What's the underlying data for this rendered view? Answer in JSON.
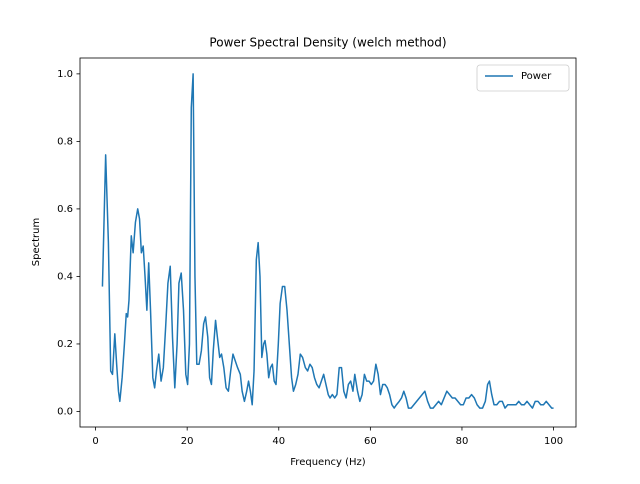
{
  "chart_data": {
    "type": "line",
    "title": "Power Spectral Density (welch method)",
    "x_label": "Frequency (Hz)",
    "y_label": "Spectrum",
    "xlim": [
      -3.4,
      104.9
    ],
    "ylim": [
      -0.046,
      1.047
    ],
    "xticks": [
      0,
      20,
      40,
      60,
      80,
      100
    ],
    "yticks": [
      {
        "value": 0,
        "label": "0.0"
      },
      0.2,
      0.4,
      0.6,
      0.8,
      {
        "value": 1,
        "label": "1.0"
      }
    ],
    "legend": "upper right",
    "x": [
      1.5,
      2.2,
      2.8,
      3.3,
      3.7,
      4.2,
      4.6,
      5.0,
      5.3,
      5.8,
      6.3,
      6.7,
      7.0,
      7.3,
      7.8,
      8.2,
      8.7,
      9.2,
      9.6,
      10.0,
      10.4,
      10.8,
      11.2,
      11.6,
      12.0,
      12.5,
      12.9,
      13.3,
      13.8,
      14.3,
      14.8,
      15.3,
      15.8,
      16.3,
      16.8,
      17.3,
      17.8,
      18.2,
      18.7,
      19.2,
      19.7,
      20.1,
      20.5,
      20.9,
      21.3,
      21.7,
      22.1,
      22.6,
      23.1,
      23.6,
      24.0,
      24.5,
      24.9,
      25.3,
      25.7,
      26.2,
      26.6,
      27.1,
      27.5,
      28.0,
      28.5,
      29.0,
      29.5,
      30.0,
      30.5,
      31.0,
      31.6,
      32.0,
      32.5,
      33.0,
      33.4,
      33.8,
      34.2,
      34.6,
      35.1,
      35.5,
      35.9,
      36.3,
      36.7,
      37.0,
      37.4,
      37.8,
      38.2,
      38.6,
      39.0,
      39.4,
      39.9,
      40.3,
      40.8,
      41.3,
      41.8,
      42.3,
      42.8,
      43.2,
      43.7,
      44.2,
      44.7,
      45.2,
      45.8,
      46.3,
      46.8,
      47.3,
      47.8,
      48.3,
      48.8,
      49.3,
      49.8,
      50.3,
      50.8,
      51.2,
      51.7,
      52.2,
      52.7,
      53.2,
      53.7,
      54.2,
      54.7,
      55.2,
      55.7,
      56.2,
      56.6,
      57.2,
      57.7,
      58.2,
      58.7,
      59.2,
      59.7,
      60.2,
      60.7,
      61.2,
      61.7,
      62.2,
      62.7,
      63.2,
      63.7,
      64.2,
      64.7,
      65.2,
      65.7,
      66.3,
      66.8,
      67.3,
      67.8,
      68.3,
      68.9,
      69.5,
      70.1,
      70.7,
      71.3,
      71.9,
      72.5,
      73.1,
      73.7,
      74.3,
      74.9,
      75.5,
      76.1,
      76.7,
      77.3,
      77.9,
      78.5,
      79.1,
      79.7,
      80.3,
      80.9,
      81.5,
      82.1,
      82.7,
      83.3,
      83.9,
      84.5,
      85.1,
      85.6,
      86.0,
      86.5,
      87.0,
      87.6,
      88.2,
      88.8,
      89.4,
      90.0,
      90.6,
      91.2,
      91.8,
      92.4,
      93.0,
      93.6,
      94.2,
      94.8,
      95.4,
      96.0,
      96.6,
      97.2,
      97.8,
      98.4,
      99.0,
      99.6,
      100.0
    ],
    "series": [
      {
        "name": "Power",
        "color": "#1f77b4",
        "values": [
          0.37,
          0.76,
          0.5,
          0.12,
          0.11,
          0.23,
          0.14,
          0.06,
          0.03,
          0.1,
          0.2,
          0.29,
          0.28,
          0.33,
          0.52,
          0.47,
          0.56,
          0.6,
          0.57,
          0.47,
          0.49,
          0.4,
          0.3,
          0.44,
          0.3,
          0.1,
          0.07,
          0.12,
          0.17,
          0.09,
          0.13,
          0.25,
          0.38,
          0.43,
          0.22,
          0.07,
          0.2,
          0.38,
          0.41,
          0.3,
          0.11,
          0.08,
          0.2,
          0.9,
          1.0,
          0.4,
          0.14,
          0.14,
          0.18,
          0.26,
          0.28,
          0.22,
          0.1,
          0.08,
          0.18,
          0.27,
          0.22,
          0.16,
          0.17,
          0.13,
          0.07,
          0.06,
          0.12,
          0.17,
          0.15,
          0.13,
          0.11,
          0.06,
          0.03,
          0.06,
          0.09,
          0.06,
          0.02,
          0.12,
          0.45,
          0.5,
          0.4,
          0.16,
          0.2,
          0.21,
          0.17,
          0.1,
          0.13,
          0.14,
          0.09,
          0.08,
          0.2,
          0.32,
          0.37,
          0.37,
          0.3,
          0.2,
          0.1,
          0.06,
          0.08,
          0.11,
          0.17,
          0.16,
          0.13,
          0.12,
          0.14,
          0.13,
          0.1,
          0.08,
          0.07,
          0.09,
          0.11,
          0.08,
          0.05,
          0.04,
          0.05,
          0.04,
          0.05,
          0.13,
          0.13,
          0.06,
          0.04,
          0.08,
          0.09,
          0.06,
          0.11,
          0.06,
          0.03,
          0.05,
          0.11,
          0.09,
          0.09,
          0.08,
          0.09,
          0.14,
          0.11,
          0.05,
          0.08,
          0.08,
          0.07,
          0.05,
          0.02,
          0.01,
          0.02,
          0.03,
          0.04,
          0.06,
          0.04,
          0.01,
          0.01,
          0.02,
          0.03,
          0.04,
          0.05,
          0.06,
          0.03,
          0.01,
          0.01,
          0.02,
          0.03,
          0.02,
          0.04,
          0.06,
          0.05,
          0.04,
          0.04,
          0.03,
          0.02,
          0.02,
          0.04,
          0.04,
          0.05,
          0.04,
          0.02,
          0.01,
          0.01,
          0.03,
          0.08,
          0.09,
          0.05,
          0.02,
          0.02,
          0.03,
          0.03,
          0.01,
          0.02,
          0.02,
          0.02,
          0.02,
          0.03,
          0.02,
          0.02,
          0.03,
          0.02,
          0.01,
          0.03,
          0.03,
          0.02,
          0.02,
          0.03,
          0.02,
          0.01,
          0.01
        ]
      }
    ]
  }
}
